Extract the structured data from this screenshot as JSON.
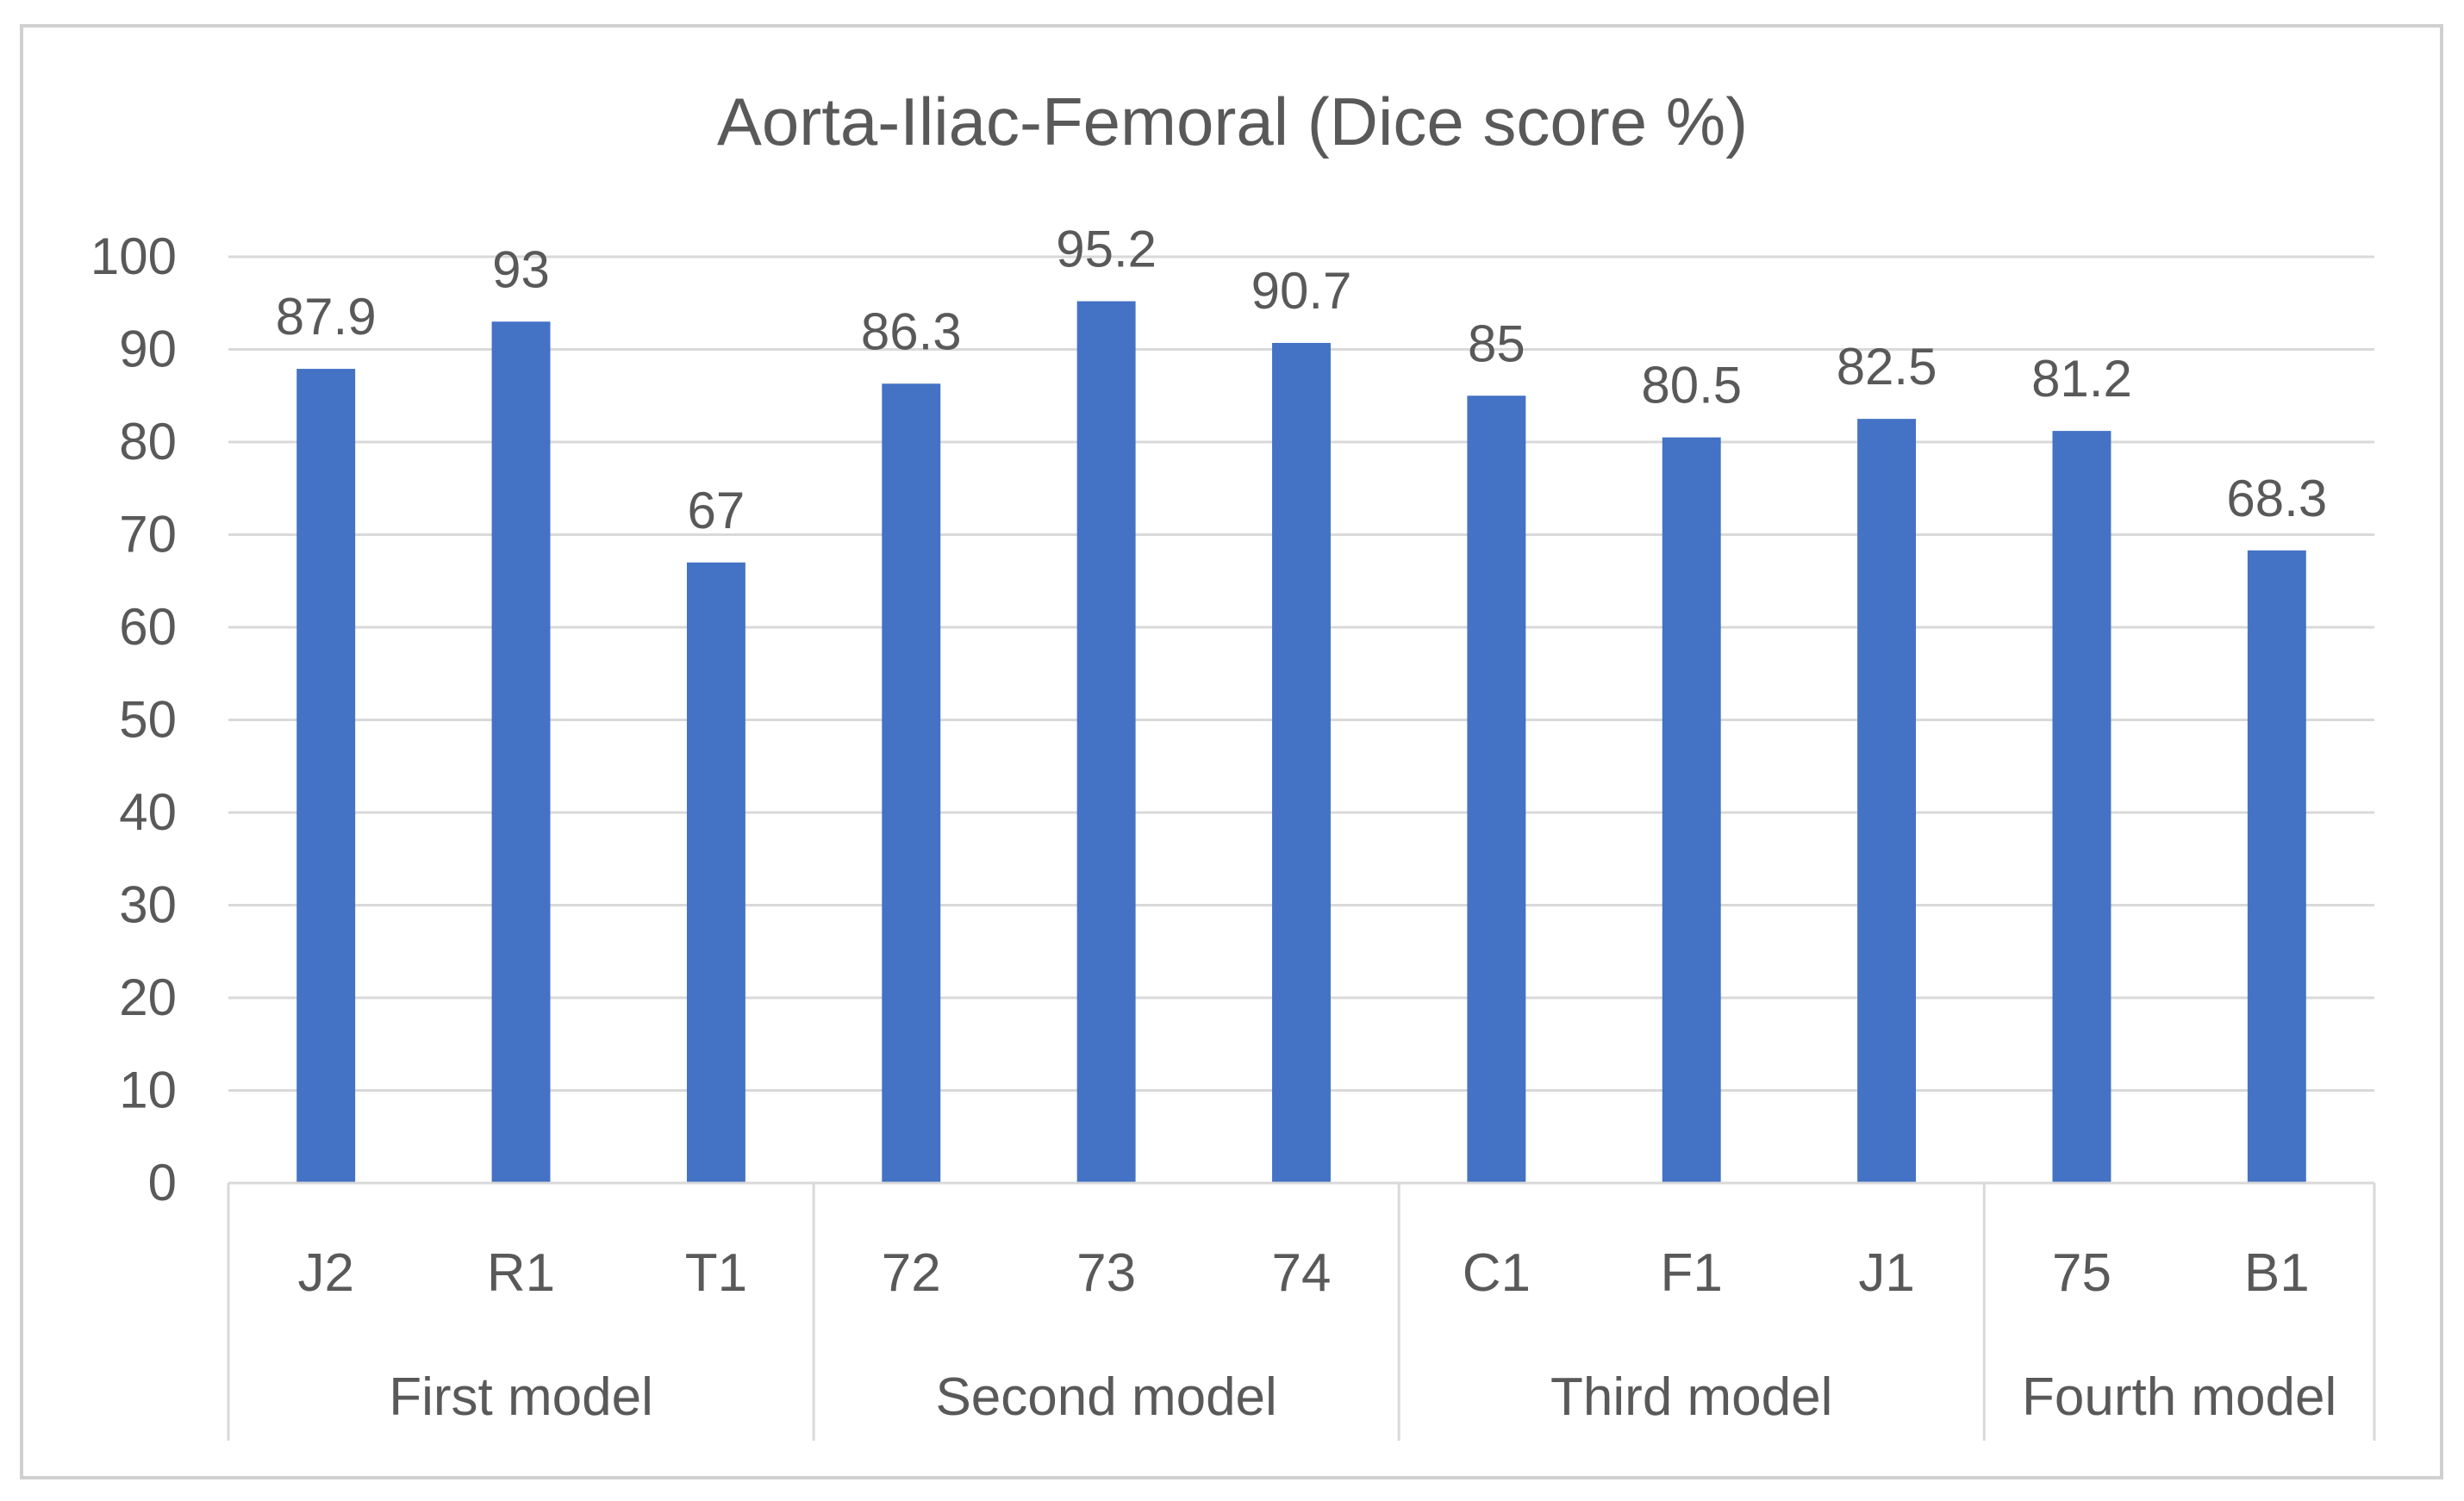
{
  "chart_data": {
    "type": "bar",
    "title": "Aorta-Iliac-Femoral (Dice score %)",
    "categories": [
      "J2",
      "R1",
      "T1",
      "72",
      "73",
      "74",
      "C1",
      "F1",
      "J1",
      "75",
      "B1"
    ],
    "groups": [
      {
        "name": "First model",
        "categories": [
          "J2",
          "R1",
          "T1"
        ]
      },
      {
        "name": "Second model",
        "categories": [
          "72",
          "73",
          "74"
        ]
      },
      {
        "name": "Third model",
        "categories": [
          "C1",
          "F1",
          "J1"
        ]
      },
      {
        "name": "Fourth model",
        "categories": [
          "75",
          "B1"
        ]
      }
    ],
    "series": [
      {
        "values": [
          87.9,
          93,
          67,
          86.3,
          95.2,
          90.7,
          85,
          80.5,
          82.5,
          81.2,
          68.3
        ],
        "labels": [
          "87.9",
          "93",
          "67",
          "86.3",
          "95.2",
          "90.7",
          "85",
          "80.5",
          "82.5",
          "81.2",
          "68.3"
        ],
        "color": "#4472C4"
      }
    ],
    "ylim": [
      0,
      100
    ],
    "yticks": [
      0,
      10,
      20,
      30,
      40,
      50,
      60,
      70,
      80,
      90,
      100
    ],
    "grid": true,
    "legend": "none",
    "colors": {
      "bar": "#4472C4",
      "grid": "#D9D9D9",
      "text": "#595959",
      "frame": "#D0D0D0"
    }
  }
}
